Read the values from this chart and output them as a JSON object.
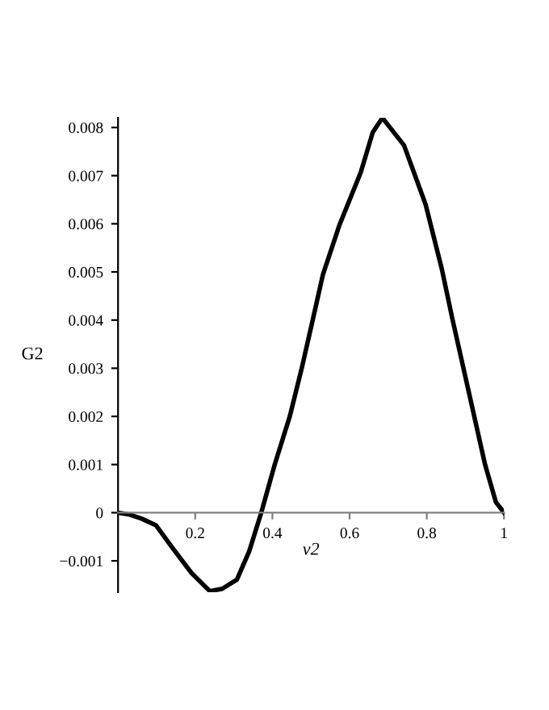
{
  "chart_data": {
    "type": "line",
    "xlabel": "v2",
    "ylabel": "G2",
    "series": [
      {
        "color": "#000000",
        "x": [
          0,
          0.03,
          0.06,
          0.098,
          0.14,
          0.19,
          0.238,
          0.27,
          0.308,
          0.34,
          0.371,
          0.406,
          0.445,
          0.476,
          0.503,
          0.531,
          0.573,
          0.629,
          0.66,
          0.685,
          0.741,
          0.797,
          0.839,
          0.867,
          0.895,
          0.923,
          0.951,
          0.979,
          1
        ],
        "values": [
          0,
          -4e-05,
          -0.00012,
          -0.00026,
          -0.00072,
          -0.00125,
          -0.00163,
          -0.00158,
          -0.00139,
          -0.0008,
          0,
          0.001,
          0.002,
          0.003,
          0.00395,
          0.00495,
          0.00596,
          0.00707,
          0.0079,
          0.0082,
          0.00763,
          0.0064,
          0.00506,
          0.004,
          0.003,
          0.002,
          0.001,
          0.00022,
          0
        ]
      }
    ],
    "xlim": [
      0,
      1
    ],
    "ylim": [
      -0.00165,
      0.0082
    ],
    "xticks": [
      0.2,
      0.4,
      0.6,
      0.8,
      1
    ],
    "yticks": [
      -0.001,
      0,
      0.001,
      0.002,
      0.003,
      0.004,
      0.005,
      0.006,
      0.007,
      0.008
    ],
    "line_style": "solid",
    "marker": "none"
  }
}
